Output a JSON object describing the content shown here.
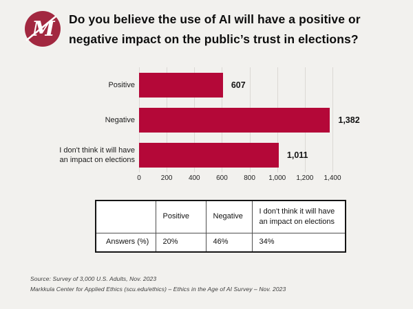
{
  "page": {
    "background": "#F2F1EE"
  },
  "header": {
    "logo": {
      "name": "markkula-center-logo",
      "circle_color": "#A22840",
      "mark_color": "#ffffff"
    },
    "title_line1": "Do you believe the use of AI will have a positive or",
    "title_line2": "negative impact on the public’s trust in elections?"
  },
  "chart_data": {
    "type": "bar",
    "orientation": "horizontal",
    "title": "",
    "categories": [
      "Positive",
      "Negative",
      "I don't think it will have\nan impact on elections"
    ],
    "values": [
      607,
      1382,
      1011
    ],
    "value_labels": [
      "607",
      "1,382",
      "1,011"
    ],
    "bar_color": "#B40838",
    "xlim": [
      0,
      1400
    ],
    "x_tick_values": [
      0,
      200,
      400,
      600,
      800,
      1000,
      1200,
      1400
    ],
    "x_tick_labels": [
      "0",
      "200",
      "400",
      "600",
      "800",
      "1,000",
      "1,200",
      "1,400"
    ],
    "grid": true,
    "gridline_color": "#DBD8D4",
    "legend": "none"
  },
  "table": {
    "header": [
      "",
      "Positive",
      "Negative",
      "I don't think it will have an impact on elections"
    ],
    "rows": [
      {
        "label": "Answers (%)",
        "values": [
          "20%",
          "46%",
          "34%"
        ]
      }
    ]
  },
  "footer": {
    "line1": "Source: Survey of 3,000 U.S. Adults, Nov. 2023",
    "line2": "Markkula Center for Applied Ethics  (scu.edu/ethics) –  Ethics in the Age of AI Survey – Nov. 2023"
  }
}
